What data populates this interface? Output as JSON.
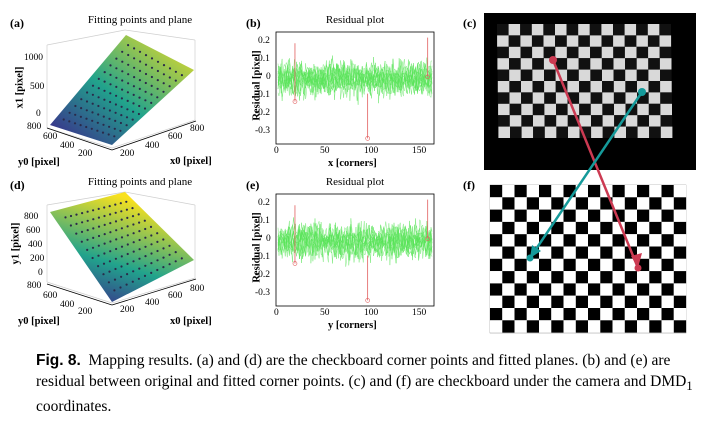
{
  "panels": {
    "a": {
      "label": "(a)",
      "title": "Fitting points and plane",
      "zlabel": "x1 [pixel]",
      "ylabel": "y0 [pixel]",
      "xlabel": "x0 [pixel]",
      "zticks": [
        "1000",
        "500",
        "0"
      ],
      "yticks": [
        "800",
        "600",
        "400",
        "200"
      ],
      "xticks": [
        "200",
        "400",
        "600",
        "800"
      ]
    },
    "b": {
      "label": "(b)",
      "title": "Residual plot",
      "ylabel": "Residual [pixel]",
      "xlabel": "x [corners]",
      "yticks": [
        "0.2",
        "0.1",
        "0",
        "-0.1",
        "-0.2",
        "-0.3"
      ],
      "xticks": [
        "0",
        "50",
        "100",
        "150"
      ]
    },
    "c": {
      "label": "(c)"
    },
    "d": {
      "label": "(d)",
      "title": "Fitting points and plane",
      "zlabel": "y1 [pixel]",
      "ylabel": "y0 [pixel]",
      "xlabel": "x0 [pixel]",
      "zticks": [
        "800",
        "600",
        "400",
        "200",
        "0"
      ],
      "yticks": [
        "800",
        "600",
        "400",
        "200"
      ],
      "xticks": [
        "200",
        "400",
        "600",
        "800"
      ]
    },
    "e": {
      "label": "(e)",
      "title": "Residual plot",
      "ylabel": "Residual [pixel]",
      "xlabel": "y [corners]",
      "yticks": [
        "0.2",
        "0.1",
        "0",
        "-0.1",
        "-0.2",
        "-0.3"
      ],
      "xticks": [
        "0",
        "50",
        "100",
        "150"
      ]
    },
    "f": {
      "label": "(f)"
    }
  },
  "caption": {
    "fig_label": "Fig. 8.",
    "text": "Mapping results. (a) and (d) are the checkboard corner points and fitted planes. (b) and (e) are residual between original and fitted corner points. (c) and (f) are checkboard under the camera and DMD",
    "subscript": "1",
    "text_end": " coordinates."
  },
  "colors": {
    "plane_high": "#f9e11e",
    "plane_mid": "#21a38c",
    "plane_low": "#3e1f8c",
    "residual_green": "#56e356",
    "residual_red": "#e26060",
    "arrow_red": "#cc3a52",
    "arrow_teal": "#159a9a"
  }
}
